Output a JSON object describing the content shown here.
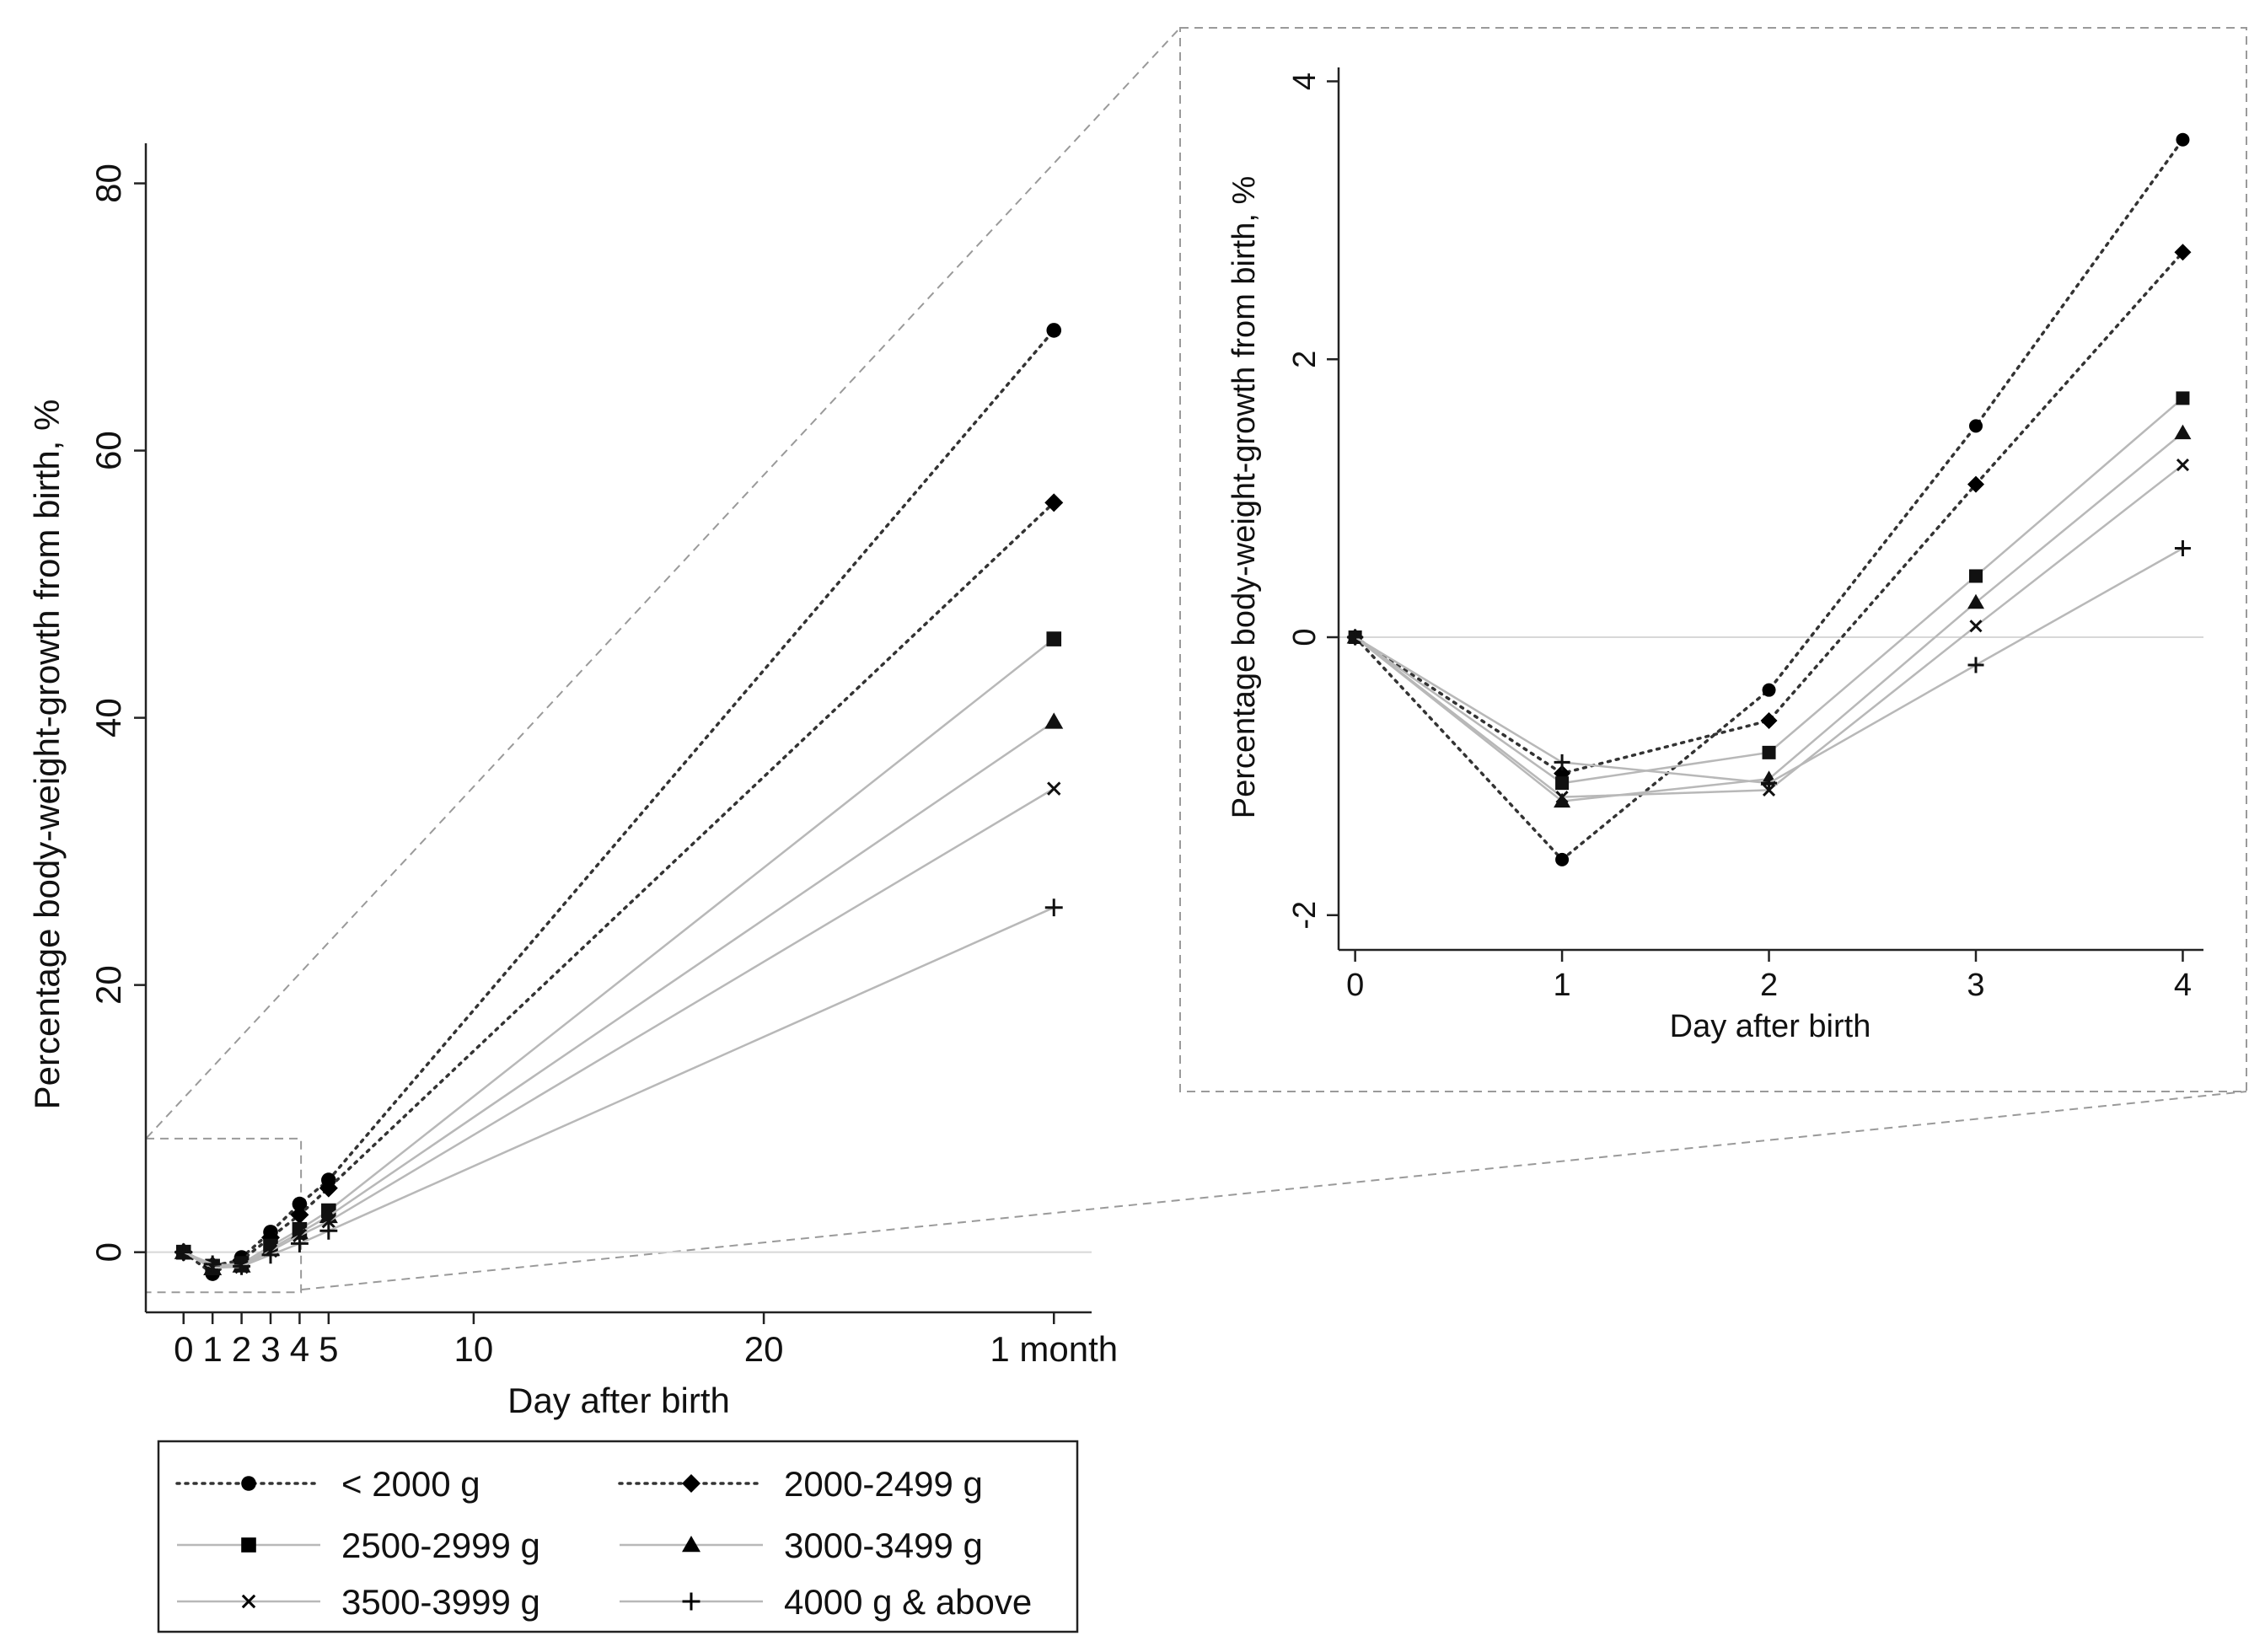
{
  "chart_data": [
    {
      "id": "main",
      "type": "line",
      "title": "",
      "xlabel": "Day after birth",
      "ylabel": "Percentage body-weight-growth from birth, %",
      "xlim": [
        -1.3,
        31.3
      ],
      "ylim": [
        -4.5,
        83
      ],
      "xticks": [
        {
          "value": 0,
          "label": "0"
        },
        {
          "value": 1,
          "label": "1"
        },
        {
          "value": 2,
          "label": "2"
        },
        {
          "value": 3,
          "label": "3"
        },
        {
          "value": 4,
          "label": "4"
        },
        {
          "value": 5,
          "label": "5"
        },
        {
          "value": 10,
          "label": "10"
        },
        {
          "value": 20,
          "label": "20"
        },
        {
          "value": 30,
          "label": "1 month"
        }
      ],
      "yticks": [
        {
          "value": 0,
          "label": "0"
        },
        {
          "value": 20,
          "label": "20"
        },
        {
          "value": 40,
          "label": "40"
        },
        {
          "value": 60,
          "label": "60"
        },
        {
          "value": 80,
          "label": "80"
        }
      ],
      "x": [
        0,
        1,
        2,
        3,
        4,
        5,
        30
      ],
      "series": [
        {
          "name": "< 2000 g",
          "marker": "circle",
          "style": "dotted-dark",
          "values": [
            0,
            -1.6,
            -0.4,
            1.5,
            3.6,
            5.4,
            69.0
          ]
        },
        {
          "name": "2000-2499 g",
          "marker": "diamond",
          "style": "dotted-dark",
          "values": [
            0,
            -1.0,
            -0.6,
            1.1,
            2.8,
            4.8,
            56.1
          ]
        },
        {
          "name": "2500-2999 g",
          "marker": "square",
          "style": "solid-light",
          "values": [
            0,
            -1.05,
            -0.85,
            0.45,
            1.7,
            3.1,
            45.9
          ]
        },
        {
          "name": "3000-3499 g",
          "marker": "triangle",
          "style": "solid-light",
          "values": [
            0,
            -1.2,
            -1.0,
            0.25,
            1.45,
            2.7,
            39.7
          ]
        },
        {
          "name": "3500-3999 g",
          "marker": "x",
          "style": "solid-light",
          "values": [
            0,
            -1.15,
            -1.1,
            0.1,
            1.25,
            2.3,
            34.7
          ]
        },
        {
          "name": "4000 g & above",
          "marker": "plus",
          "style": "solid-light",
          "values": [
            0,
            -0.9,
            -1.05,
            -0.2,
            0.65,
            1.6,
            25.8
          ]
        }
      ],
      "zoom_region": {
        "x": [
          -1.3,
          4.05
        ],
        "y": [
          -3,
          8.5
        ]
      }
    },
    {
      "id": "inset",
      "type": "line",
      "title": "",
      "xlabel": "Day after birth",
      "ylabel": "Percentage body-weight-growth from birth, %",
      "xlim": [
        -0.08,
        4.1
      ],
      "ylim": [
        -2.25,
        4.1
      ],
      "xticks": [
        {
          "value": 0,
          "label": "0"
        },
        {
          "value": 1,
          "label": "1"
        },
        {
          "value": 2,
          "label": "2"
        },
        {
          "value": 3,
          "label": "3"
        },
        {
          "value": 4,
          "label": "4"
        }
      ],
      "yticks": [
        {
          "value": -2,
          "label": "-2"
        },
        {
          "value": 0,
          "label": "0"
        },
        {
          "value": 2,
          "label": "2"
        },
        {
          "value": 4,
          "label": "4"
        }
      ],
      "x": [
        0,
        1,
        2,
        3,
        4
      ],
      "series": [
        {
          "name": "< 2000 g",
          "marker": "circle",
          "style": "dotted-dark",
          "values": [
            0,
            -1.6,
            -0.38,
            1.52,
            3.58
          ]
        },
        {
          "name": "2000-2499 g",
          "marker": "diamond",
          "style": "dotted-dark",
          "values": [
            0,
            -0.98,
            -0.6,
            1.1,
            2.77
          ]
        },
        {
          "name": "2500-2999 g",
          "marker": "square",
          "style": "solid-light",
          "values": [
            0,
            -1.05,
            -0.83,
            0.44,
            1.72
          ]
        },
        {
          "name": "3000-3499 g",
          "marker": "triangle",
          "style": "solid-light",
          "values": [
            0,
            -1.18,
            -1.02,
            0.25,
            1.47
          ]
        },
        {
          "name": "3500-3999 g",
          "marker": "x",
          "style": "solid-light",
          "values": [
            0,
            -1.15,
            -1.1,
            0.08,
            1.24
          ]
        },
        {
          "name": "4000 g & above",
          "marker": "plus",
          "style": "solid-light",
          "values": [
            0,
            -0.9,
            -1.05,
            -0.2,
            0.64
          ]
        }
      ]
    }
  ],
  "legend": {
    "placement": "bottom-left",
    "entries": [
      "< 2000 g",
      "2000-2499 g",
      "2500-2999 g",
      "3000-3499 g",
      "3500-3999 g",
      "4000 g & above"
    ]
  },
  "colors": {
    "dark_series": "#333333",
    "light_series": "#b8b8b8",
    "zero_line": "#d8d8d8"
  }
}
